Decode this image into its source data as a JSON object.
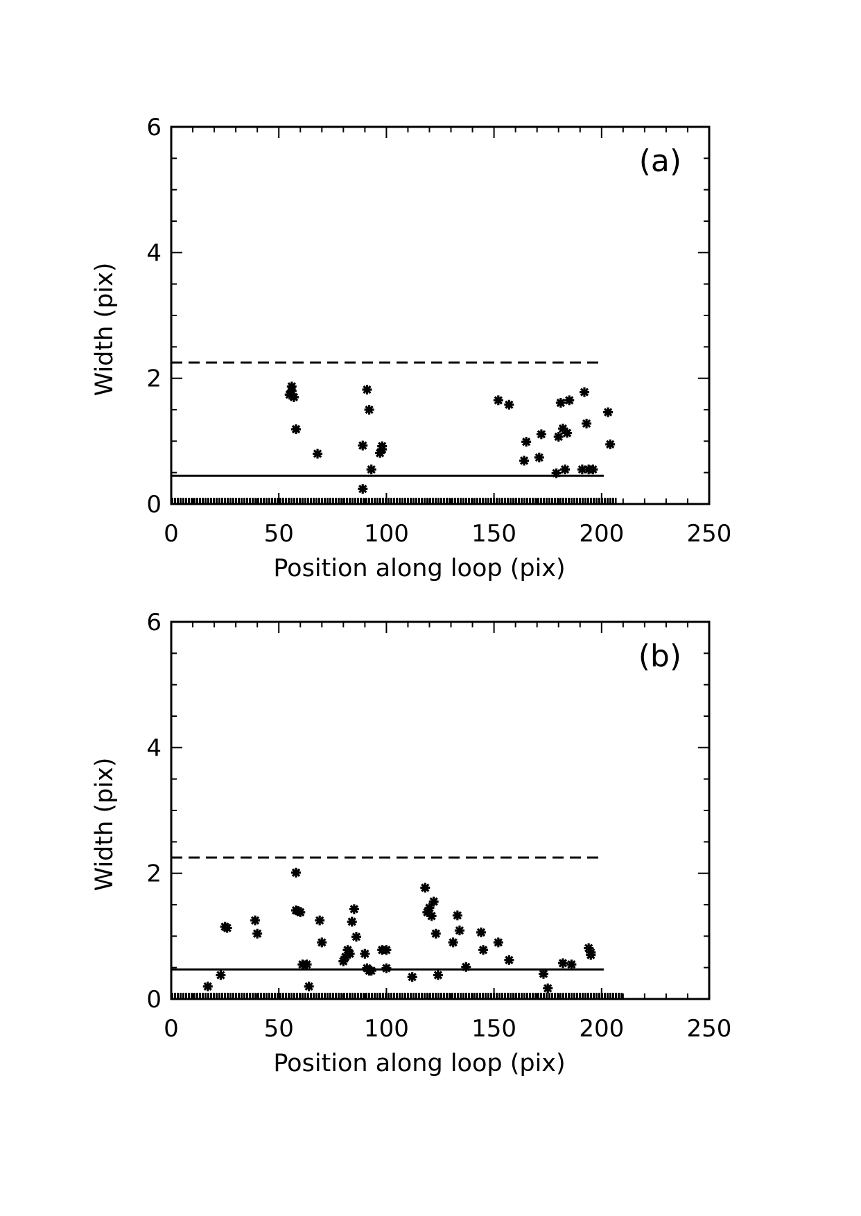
{
  "chart_data": [
    {
      "type": "scatter",
      "panel_label": "(a)",
      "xlabel": "Position along loop (pix)",
      "ylabel": "Width (pix)",
      "xlim": [
        0,
        250
      ],
      "ylim": [
        0,
        6
      ],
      "xticks": [
        0,
        50,
        100,
        150,
        200,
        250
      ],
      "yticks": [
        0,
        2,
        4,
        6
      ],
      "marker": "asterisk",
      "points": [
        [
          56,
          1.87
        ],
        [
          56,
          1.8
        ],
        [
          55,
          1.74
        ],
        [
          57,
          1.7
        ],
        [
          58,
          1.19
        ],
        [
          68,
          0.8
        ],
        [
          89,
          0.93
        ],
        [
          91,
          1.82
        ],
        [
          92,
          1.5
        ],
        [
          93,
          0.55
        ],
        [
          89,
          0.24
        ],
        [
          97,
          0.81
        ],
        [
          98,
          0.87
        ],
        [
          98,
          0.92
        ],
        [
          152,
          1.65
        ],
        [
          157,
          1.58
        ],
        [
          164,
          0.69
        ],
        [
          165,
          0.99
        ],
        [
          171,
          0.74
        ],
        [
          172,
          1.11
        ],
        [
          179,
          0.49
        ],
        [
          180,
          1.07
        ],
        [
          181,
          1.61
        ],
        [
          182,
          1.2
        ],
        [
          183,
          0.55
        ],
        [
          184,
          1.13
        ],
        [
          185,
          1.65
        ],
        [
          191,
          0.55
        ],
        [
          192,
          1.78
        ],
        [
          193,
          1.28
        ],
        [
          194,
          0.55
        ],
        [
          196,
          0.55
        ],
        [
          203,
          1.46
        ],
        [
          204,
          0.95
        ]
      ],
      "baseline_points": {
        "y": 0,
        "x_start": 0,
        "x_end": 207
      },
      "solid_line": {
        "y": 0.45,
        "x_start": 0,
        "x_end": 201
      },
      "dashed_line": {
        "y": 2.25,
        "x_start": 0,
        "x_end": 201
      }
    },
    {
      "type": "scatter",
      "panel_label": "(b)",
      "xlabel": "Position along loop (pix)",
      "ylabel": "Width (pix)",
      "xlim": [
        0,
        250
      ],
      "ylim": [
        0,
        6
      ],
      "xticks": [
        0,
        50,
        100,
        150,
        200,
        250
      ],
      "yticks": [
        0,
        2,
        4,
        6
      ],
      "marker": "asterisk",
      "points": [
        [
          17,
          0.2
        ],
        [
          23,
          0.38
        ],
        [
          25,
          1.15
        ],
        [
          26,
          1.13
        ],
        [
          39,
          1.25
        ],
        [
          40,
          1.04
        ],
        [
          58,
          2.01
        ],
        [
          58,
          1.41
        ],
        [
          59,
          1.4
        ],
        [
          60,
          1.38
        ],
        [
          61,
          0.55
        ],
        [
          63,
          0.55
        ],
        [
          64,
          0.2
        ],
        [
          69,
          1.25
        ],
        [
          70,
          0.9
        ],
        [
          80,
          0.6
        ],
        [
          81,
          0.67
        ],
        [
          82,
          0.78
        ],
        [
          83,
          0.72
        ],
        [
          84,
          1.23
        ],
        [
          85,
          1.43
        ],
        [
          86,
          0.99
        ],
        [
          90,
          0.72
        ],
        [
          91,
          0.49
        ],
        [
          92,
          0.45
        ],
        [
          93,
          0.45
        ],
        [
          98,
          0.78
        ],
        [
          100,
          0.78
        ],
        [
          100,
          0.49
        ],
        [
          112,
          0.35
        ],
        [
          118,
          1.77
        ],
        [
          119,
          1.38
        ],
        [
          120,
          1.45
        ],
        [
          121,
          1.32
        ],
        [
          122,
          1.55
        ],
        [
          123,
          1.04
        ],
        [
          124,
          0.38
        ],
        [
          131,
          0.9
        ],
        [
          133,
          1.33
        ],
        [
          134,
          1.09
        ],
        [
          137,
          0.51
        ],
        [
          144,
          1.06
        ],
        [
          145,
          0.78
        ],
        [
          152,
          0.9
        ],
        [
          157,
          0.62
        ],
        [
          173,
          0.4
        ],
        [
          175,
          0.17
        ],
        [
          182,
          0.57
        ],
        [
          186,
          0.55
        ],
        [
          194,
          0.81
        ],
        [
          195,
          0.74
        ],
        [
          195,
          0.7
        ]
      ],
      "baseline_points": {
        "y": 0,
        "x_start": 0,
        "x_end": 210
      },
      "solid_line": {
        "y": 0.47,
        "x_start": 0,
        "x_end": 201
      },
      "dashed_line": {
        "y": 2.25,
        "x_start": 0,
        "x_end": 201
      }
    }
  ]
}
